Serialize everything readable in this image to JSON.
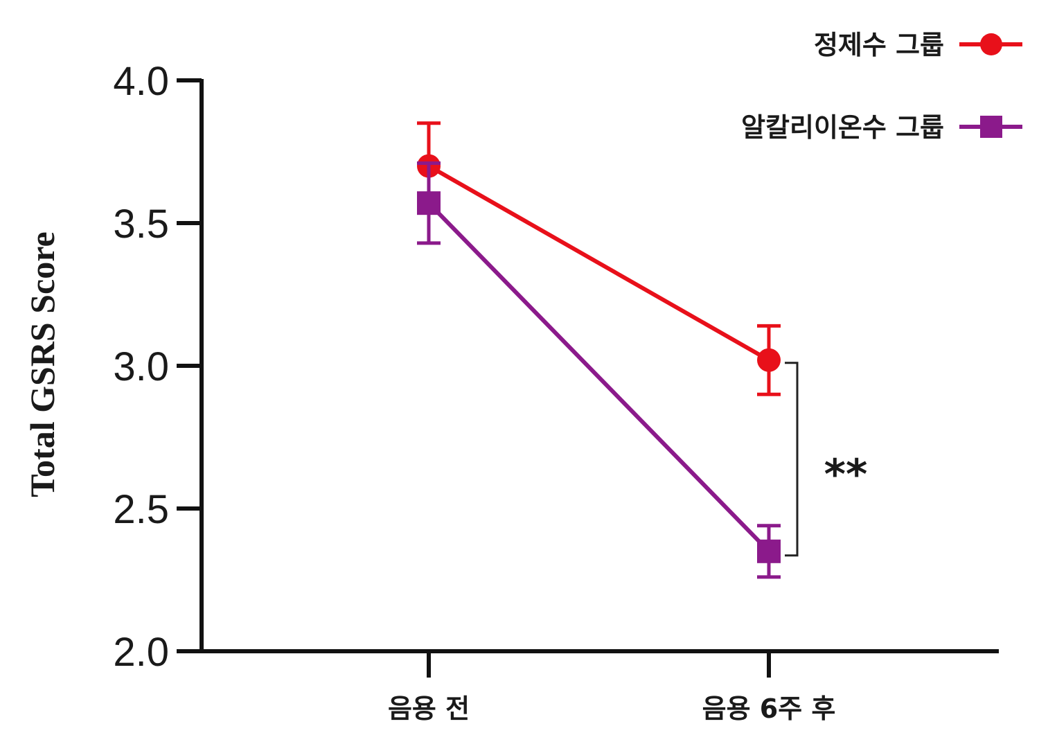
{
  "chart_data": {
    "type": "line",
    "ylabel": "Total GSRS Score",
    "ylim": [
      2.0,
      4.0
    ],
    "yticks": [
      "2.0",
      "2.5",
      "3.0",
      "3.5",
      "4.0"
    ],
    "categories": [
      "음용 전",
      "음용 6주 후"
    ],
    "series": [
      {
        "name": "정제수 그룹",
        "color": "#e8101a",
        "marker": "circle",
        "values": [
          3.7,
          3.02
        ],
        "error": [
          0.15,
          0.12
        ]
      },
      {
        "name": "알칼리이온수 그룹",
        "color": "#8b1a8b",
        "marker": "square",
        "values": [
          3.57,
          2.35
        ],
        "error": [
          0.14,
          0.09
        ]
      }
    ],
    "annotation": {
      "text": "**",
      "category_index": 1
    },
    "legend_position": "top-right",
    "grid": false
  }
}
